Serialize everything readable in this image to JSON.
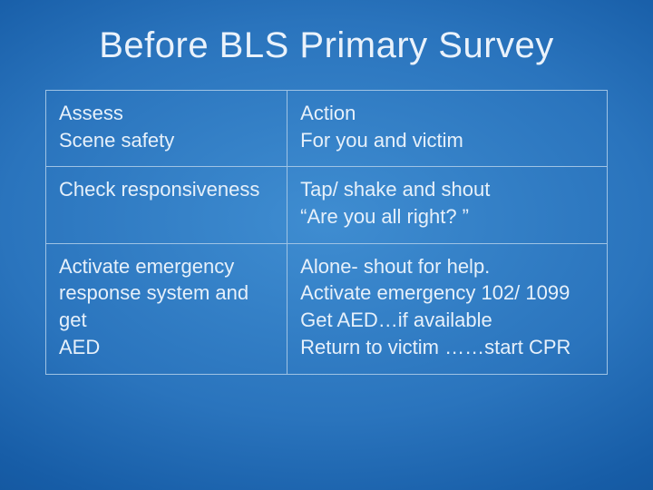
{
  "slide": {
    "title": "Before BLS Primary Survey",
    "background_center": "#3f8dd1",
    "background_edge": "#0d4a8e",
    "text_color": "#e6f0fa",
    "border_color": "#9fc3e4",
    "title_fontsize": 40,
    "cell_fontsize": 22,
    "table": {
      "columns": [
        "Assess",
        "Action"
      ],
      "col_widths": [
        "43%",
        "57%"
      ],
      "rows": [
        {
          "left_lines": [
            "Assess",
            "Scene safety"
          ],
          "right_lines": [
            "Action",
            "For you and victim"
          ]
        },
        {
          "left_lines": [
            "Check responsiveness"
          ],
          "right_lines": [
            "Tap/ shake and shout",
            "“Are you all right? ”"
          ]
        },
        {
          "left_lines": [
            "Activate emergency",
            "response system and get",
            "AED"
          ],
          "right_lines": [
            "Alone- shout for help.",
            "Activate emergency 102/ 1099",
            "Get AED…if available",
            "Return to victim ……start CPR"
          ]
        }
      ]
    }
  }
}
